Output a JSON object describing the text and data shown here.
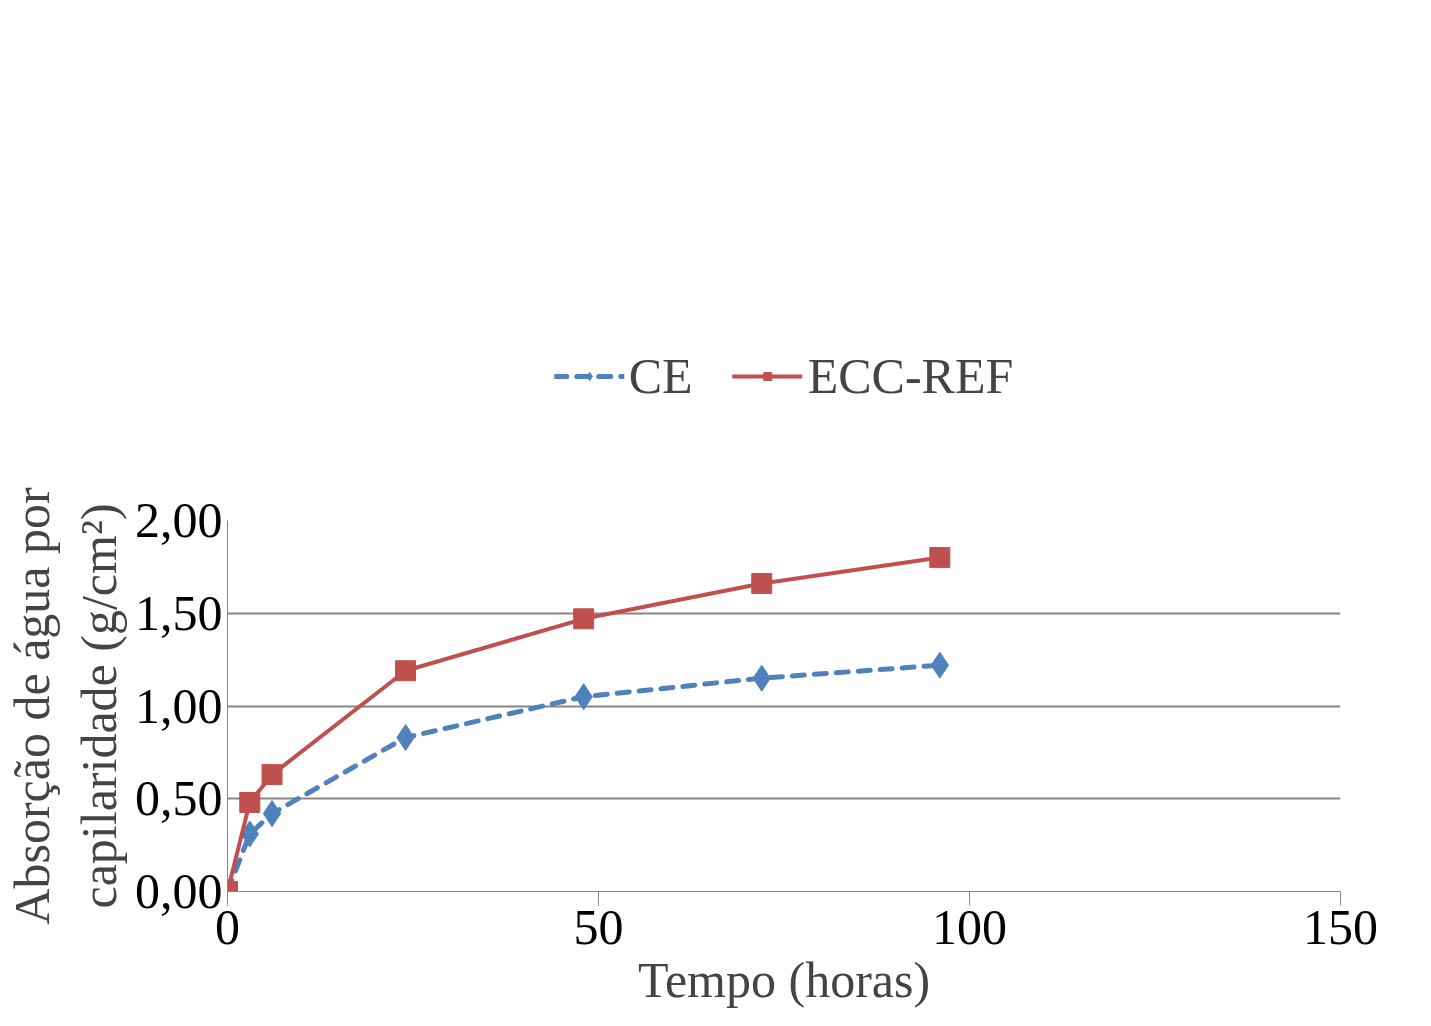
{
  "chart_data": {
    "type": "line",
    "xlabel": "Tempo (horas)",
    "ylabel": "Absorção de água por\ncapilaridade (g/cm²)",
    "x": [
      0,
      3,
      6,
      24,
      48,
      72,
      96
    ],
    "series": [
      {
        "name": "CE",
        "color": "#4f81bd",
        "values": [
          0,
          0.31,
          0.42,
          0.83,
          1.05,
          1.15,
          1.22
        ],
        "marker": "diamond",
        "line_style": "dashed"
      },
      {
        "name": "ECC-REF",
        "color": "#c0504d",
        "values": [
          0,
          0.48,
          0.63,
          1.19,
          1.47,
          1.66,
          1.8
        ],
        "marker": "square",
        "line_style": "solid"
      }
    ],
    "xlim": [
      0,
      150
    ],
    "xticks": [
      0,
      50,
      100,
      150
    ],
    "ylim": [
      0,
      2
    ],
    "yticks": [
      {
        "value": 0,
        "label": "0,00"
      },
      {
        "value": 0.5,
        "label": "0,50"
      },
      {
        "value": 1,
        "label": "1,00"
      },
      {
        "value": 1.5,
        "label": "1,50"
      },
      {
        "value": 2,
        "label": "2,00"
      }
    ],
    "grid": "y",
    "legend": "top"
  }
}
